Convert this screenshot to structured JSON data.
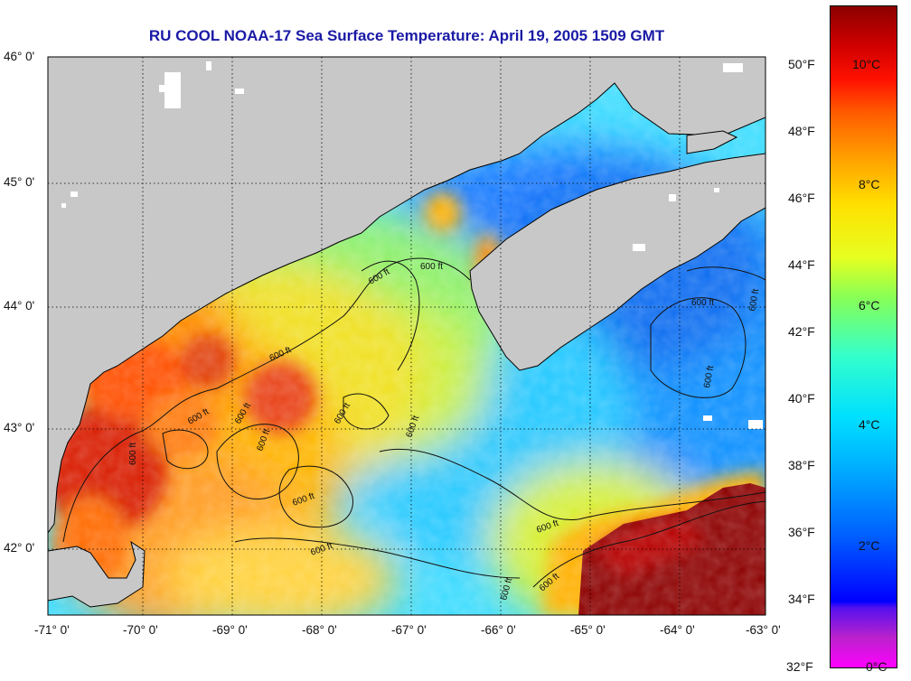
{
  "title": "RU COOL  NOAA-17  Sea Surface Temperature:  April 19, 2005 1509 GMT",
  "lat_labels": [
    "46° 0'",
    "45° 0'",
    "44° 0'",
    "43° 0'",
    "42° 0'"
  ],
  "lon_labels": [
    "-71° 0'",
    "-70° 0'",
    "-69° 0'",
    "-68° 0'",
    "-67° 0'",
    "-66° 0'",
    "-65° 0'",
    "-64° 0'",
    "-63° 0'"
  ],
  "colorbar": {
    "fahrenheit": [
      "50°F",
      "48°F",
      "46°F",
      "44°F",
      "42°F",
      "40°F",
      "38°F",
      "36°F",
      "34°F",
      "32°F"
    ],
    "celsius": [
      "10°C",
      "8°C",
      "6°C",
      "4°C",
      "2°C",
      "0°C"
    ]
  },
  "contour_label": "600 ft",
  "colors": {
    "land": "#c8c8c8",
    "title": "#1a1aa6",
    "cold": "#0060ff",
    "cool": "#00d0ff",
    "warm": "#ffd000",
    "hot": "#8c0000"
  }
}
